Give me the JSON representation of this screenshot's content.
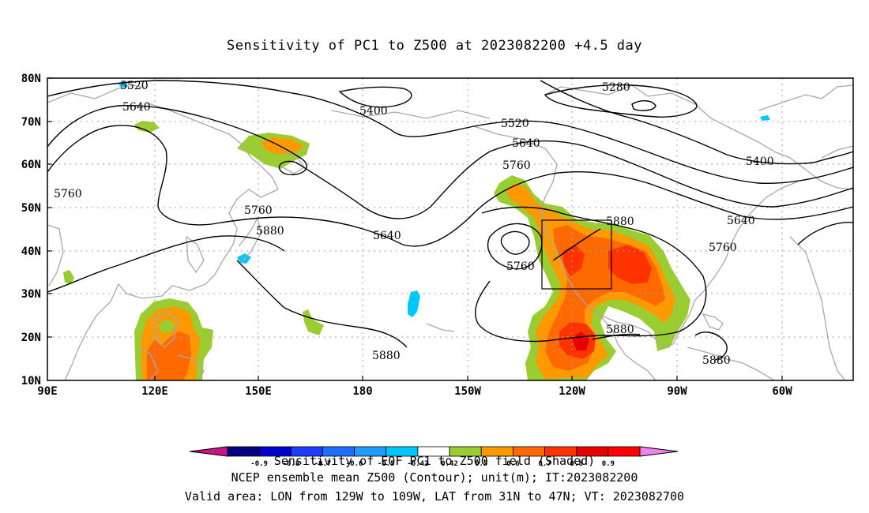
{
  "title": "Sensitivity of PC1 to Z500 at 2023082200 +4.5 day",
  "map": {
    "lat_labels": [
      "80N",
      "70N",
      "60N",
      "50N",
      "40N",
      "30N",
      "20N",
      "10N"
    ],
    "lon_labels": [
      "90E",
      "120E",
      "150E",
      "180",
      "150W",
      "120W",
      "90W",
      "60W"
    ],
    "contour_labels": [
      "5520",
      "5640",
      "5400",
      "5280",
      "5520",
      "5640",
      "5760",
      "5400",
      "5760",
      "5760",
      "5640",
      "5640",
      "5880",
      "5880",
      "5760",
      "5640",
      "5760",
      "5880",
      "5880",
      "5880"
    ],
    "valid_box": {
      "lon_west": "129W",
      "lon_east": "109W",
      "lat_south": "31N",
      "lat_north": "47N"
    },
    "colors": {
      "coast": "#a8a8a8",
      "contour": "#000000",
      "grid": "#a0a0a0",
      "shade_green": "#9acd32",
      "shade_orange": "#ff9900",
      "shade_darkorange": "#ff6a00",
      "shade_red": "#ff3300",
      "shade_deepred": "#e60000",
      "shade_cyan": "#00c8ff"
    }
  },
  "colorbar": {
    "tick_labels": [
      "-0.9",
      "-0.8",
      "-0.7",
      "-0.6",
      "-0.5",
      "-0.42",
      "0.42",
      "0.5",
      "0.6",
      "0.7",
      "0.8",
      "0.9"
    ],
    "colors": [
      "#c71585",
      "#000080",
      "#0000cd",
      "#1e3cff",
      "#1e6eff",
      "#1e9bff",
      "#00c8ff",
      "#ffffff",
      "#9acd32",
      "#ff9900",
      "#ff6a00",
      "#ff3300",
      "#e60000",
      "#ff0000",
      "#ee82ee"
    ]
  },
  "footer": {
    "line1": "Sensitivity of EOF PC1 to Z500 field (Shaded)",
    "line2": "NCEP ensemble mean Z500 (Contour); unit(m); IT:2023082200",
    "line3": "Valid area: LON from 129W to 109W, LAT from 31N to 47N; VT: 2023082700"
  }
}
